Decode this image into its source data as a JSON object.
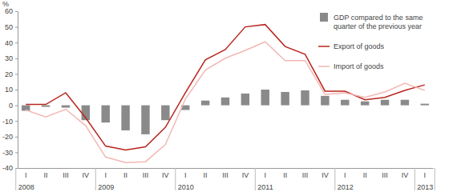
{
  "chart_data": {
    "type": "bar",
    "y_label": "%",
    "categories": [
      "I",
      "II",
      "III",
      "IV",
      "I",
      "II",
      "III",
      "IV",
      "I",
      "II",
      "III",
      "IV",
      "I",
      "II",
      "III",
      "IV",
      "I",
      "II",
      "III",
      "IV",
      "I"
    ],
    "groups": [
      {
        "label": "2008",
        "size": 4
      },
      {
        "label": "2009",
        "size": 4
      },
      {
        "label": "2010",
        "size": 4
      },
      {
        "label": "2011",
        "size": 4
      },
      {
        "label": "2012",
        "size": 4
      },
      {
        "label": "2013",
        "size": 1
      }
    ],
    "series": [
      {
        "name": "GDP compared to the same quarter of the previous year",
        "type": "bar",
        "color": "#8a8a8a",
        "values": [
          -3.5,
          -1,
          -1.5,
          -9.5,
          -11,
          -16,
          -18.5,
          -9.5,
          -3,
          3,
          5,
          7.5,
          10,
          8.5,
          9.5,
          6,
          3.5,
          2.5,
          3.5,
          3.5,
          1
        ]
      },
      {
        "name": "Export of goods",
        "type": "line",
        "color": "#b8261e",
        "values": [
          0.5,
          0.5,
          8,
          -8,
          -26,
          -28.5,
          -26.5,
          -14,
          8,
          29,
          35.5,
          50,
          51.5,
          37.5,
          32.5,
          9,
          9,
          3.5,
          5,
          9.5,
          13
        ]
      },
      {
        "name": "Import of goods",
        "type": "line",
        "color": "#f2b8b5",
        "values": [
          -3,
          -7.5,
          -2.5,
          -13,
          -33,
          -36.5,
          -36,
          -25,
          4,
          22.5,
          30,
          35,
          40.5,
          28.5,
          28.5,
          7,
          8,
          5,
          8.5,
          14,
          9.5
        ]
      }
    ],
    "ylim": [
      -40,
      60
    ],
    "yticks": [
      -40,
      -30,
      -20,
      -10,
      0,
      10,
      20,
      30,
      40,
      50,
      60
    ],
    "legend": "top-right",
    "grid": false
  }
}
